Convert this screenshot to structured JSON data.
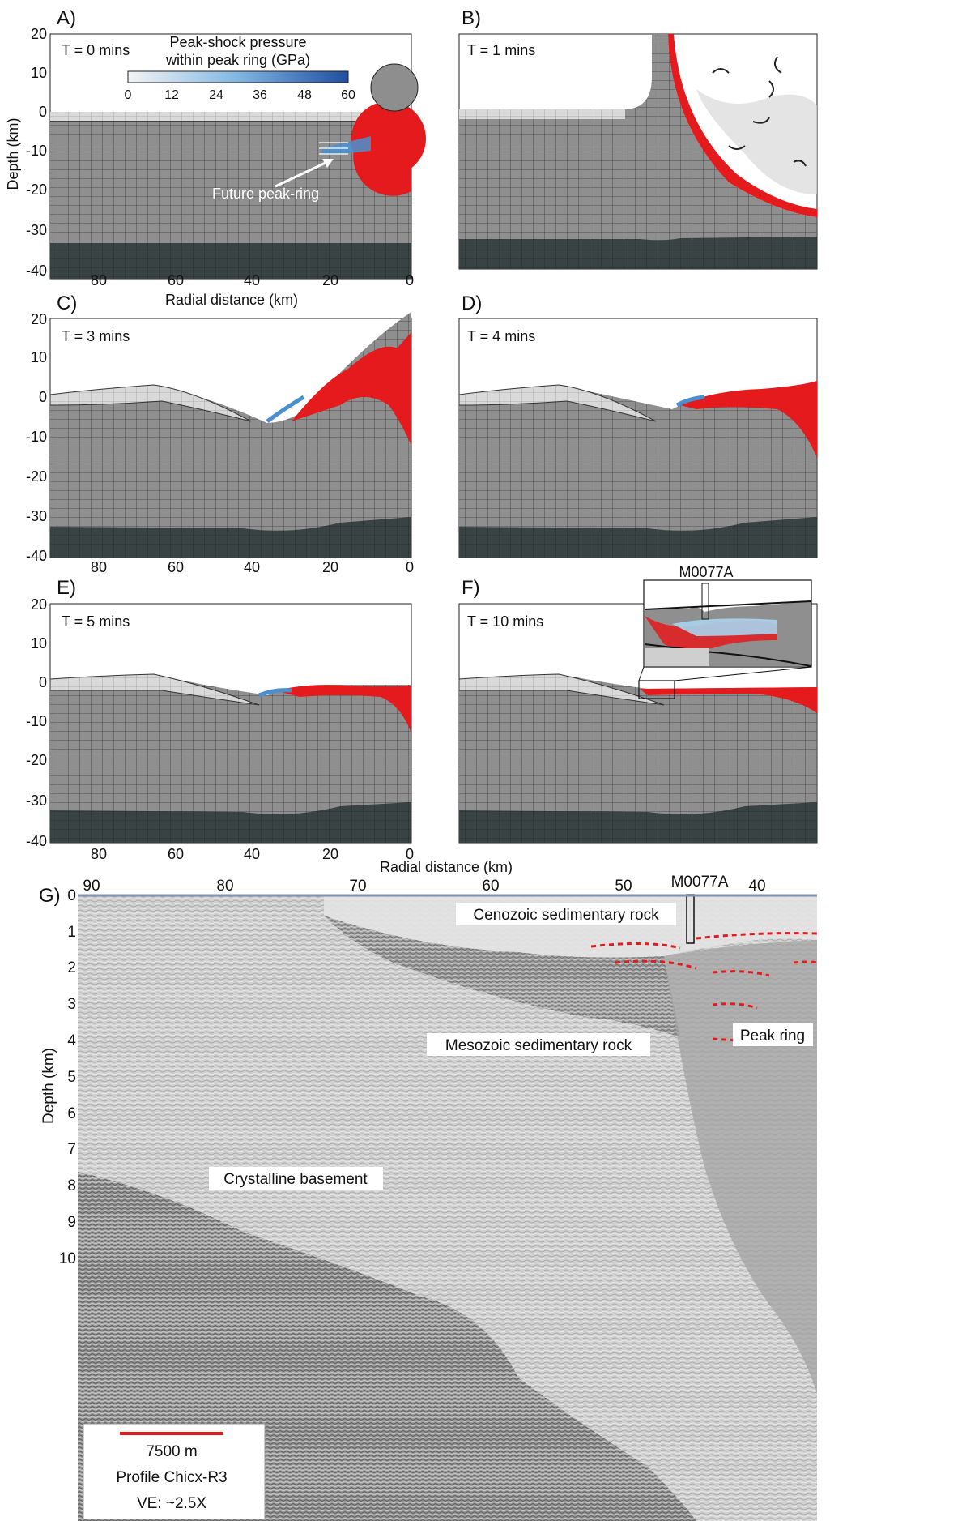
{
  "panels": [
    {
      "letter": "A)",
      "time": "T = 0 mins"
    },
    {
      "letter": "B)",
      "time": "T = 1 mins"
    },
    {
      "letter": "C)",
      "time": "T = 3 mins"
    },
    {
      "letter": "D)",
      "time": "T = 4 mins"
    },
    {
      "letter": "E)",
      "time": "T = 5 mins"
    },
    {
      "letter": "F)",
      "time": "T = 10 mins"
    }
  ],
  "model_axes": {
    "ylabel": "Depth (km)",
    "xlabel": "Radial distance (km)",
    "y_ticks": [
      "20",
      "10",
      "0",
      "-10",
      "-20",
      "-30",
      "-40"
    ],
    "x_ticks": [
      "80",
      "60",
      "40",
      "20",
      "0"
    ]
  },
  "colorbar": {
    "title_line1": "Peak-shock pressure",
    "title_line2": "within peak ring (GPa)",
    "ticks": [
      "0",
      "12",
      "24",
      "36",
      "48",
      "60"
    ],
    "color_low": "#f4f4f4",
    "color_high": "#1f4fa0"
  },
  "annotation_peak_ring": "Future peak-ring",
  "inset_label": "M0077A",
  "seismic": {
    "letter": "G)",
    "ylabel": "Depth (km)",
    "y_ticks": [
      "0",
      "1",
      "2",
      "3",
      "4",
      "5",
      "6",
      "7",
      "8",
      "9",
      "10"
    ],
    "x_ticks": [
      "90",
      "80",
      "70",
      "60",
      "50",
      "40"
    ],
    "borehole": "M0077A",
    "labels": {
      "cenozoic": "Cenozoic sedimentary rock",
      "mesozoic": "Mesozoic sedimentary rock",
      "peak_ring": "Peak ring",
      "basement": "Crystalline basement"
    },
    "legend": {
      "scale": "7500 m",
      "profile": "Profile Chicx-R3",
      "ve": "VE: ~2.5X"
    }
  },
  "colors": {
    "rock_mid": "#8e8e8e",
    "rock_light": "#d4d4d4",
    "rock_dark": "#3b4444",
    "impactor_red": "#e41a1c",
    "shock_blue": "#4a90d0"
  }
}
